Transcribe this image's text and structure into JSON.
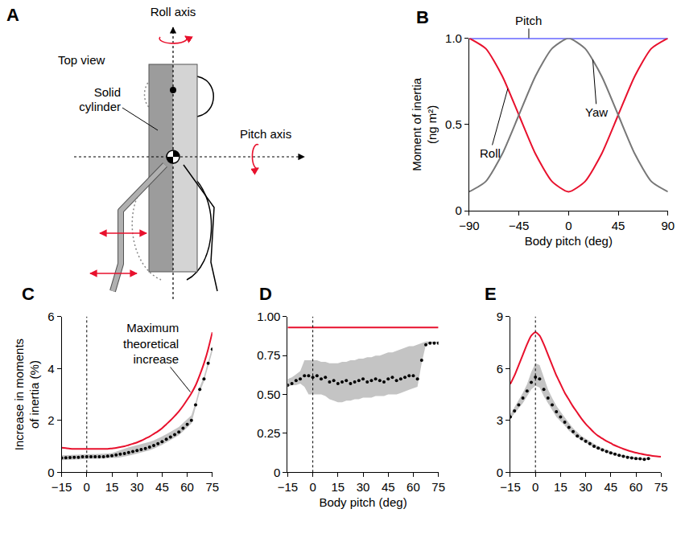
{
  "diagram": {
    "panel": "A",
    "view": "Top view",
    "roll_axis": "Roll axis",
    "pitch_axis": "Pitch axis",
    "cylinder": "Solid cylinder"
  },
  "chart_data": [
    {
      "panel": "B",
      "type": "line",
      "xlabel": "Body pitch (deg)",
      "ylabel": "Moment of inertia (ng m²)",
      "x": [
        -90,
        -75,
        -60,
        -45,
        -30,
        -15,
        0,
        15,
        30,
        45,
        60,
        75,
        90
      ],
      "xlim": [
        -90,
        90
      ],
      "xticks": [
        {
          "value": -90,
          "label": "−90"
        },
        {
          "value": -45,
          "label": "−45"
        },
        0,
        45,
        90
      ],
      "ylim": [
        0,
        1
      ],
      "yticks": [
        0,
        0.5,
        {
          "value": 1,
          "label": "1.0"
        }
      ],
      "series": [
        {
          "name": "Pitch",
          "color": "#1a1aff",
          "line_style": "solid",
          "values": [
            1,
            1,
            1,
            1,
            1,
            1,
            1,
            1,
            1,
            1,
            1,
            1,
            1
          ]
        },
        {
          "name": "Roll",
          "color": "#e8112d",
          "line_style": "solid",
          "values": [
            1.0,
            0.94,
            0.78,
            0.555,
            0.33,
            0.17,
            0.11,
            0.17,
            0.33,
            0.555,
            0.78,
            0.94,
            1.0
          ]
        },
        {
          "name": "Yaw",
          "color": "#777777",
          "line_style": "solid",
          "values": [
            0.11,
            0.17,
            0.33,
            0.555,
            0.78,
            0.94,
            1.0,
            0.94,
            0.78,
            0.555,
            0.33,
            0.17,
            0.11
          ]
        }
      ]
    },
    {
      "panel": "C",
      "type": "line",
      "ylabel": "Increase in moments of inertia (%)",
      "annotations": [
        {
          "text": "Maximum theoretical increase"
        }
      ],
      "vline": 0,
      "x": [
        -15,
        -12.5,
        -10,
        -7.5,
        -5,
        -2.5,
        0,
        2.5,
        5,
        7.5,
        10,
        12.5,
        15,
        17.5,
        20,
        22.5,
        25,
        27.5,
        30,
        32.5,
        35,
        37.5,
        40,
        42.5,
        45,
        47.5,
        50,
        52.5,
        55,
        57.5,
        60,
        62.5,
        65,
        67.5,
        70,
        72.5,
        75
      ],
      "xlim": [
        -15,
        75
      ],
      "xticks": [
        {
          "value": -15,
          "label": "−15"
        },
        0,
        15,
        30,
        45,
        60,
        75
      ],
      "ylim": [
        0,
        6
      ],
      "yticks": [
        0,
        2,
        4,
        6
      ],
      "series": [
        {
          "type": "scatter",
          "color": "#000000",
          "marker": "circle",
          "values": [
            0.55,
            0.56,
            0.57,
            0.58,
            0.58,
            0.6,
            0.6,
            0.6,
            0.6,
            0.6,
            0.6,
            0.62,
            0.64,
            0.67,
            0.7,
            0.72,
            0.76,
            0.8,
            0.84,
            0.88,
            0.92,
            0.97,
            1.03,
            1.1,
            1.18,
            1.27,
            1.36,
            1.45,
            1.55,
            1.7,
            1.85,
            2.0,
            2.6,
            3.2,
            3.6,
            4.2,
            4.75
          ],
          "lower": [
            0.47,
            0.48,
            0.49,
            0.5,
            0.5,
            0.52,
            0.52,
            0.52,
            0.52,
            0.52,
            0.52,
            0.54,
            0.56,
            0.55,
            0.58,
            0.6,
            0.64,
            0.68,
            0.72,
            0.76,
            0.8,
            0.85,
            0.91,
            0.98,
            1.06,
            1.15,
            1.24,
            1.33,
            1.43,
            1.58,
            1.73,
            1.88,
            2.5,
            3.1,
            3.5,
            4.1,
            4.65
          ],
          "upper": [
            0.65,
            0.66,
            0.67,
            0.68,
            0.68,
            0.7,
            0.7,
            0.7,
            0.7,
            0.7,
            0.7,
            0.72,
            0.74,
            0.8,
            0.86,
            0.92,
            0.96,
            1.0,
            1.04,
            1.08,
            1.12,
            1.17,
            1.23,
            1.3,
            1.38,
            1.47,
            1.56,
            1.65,
            1.75,
            1.9,
            2.05,
            2.2,
            2.7,
            3.3,
            3.7,
            4.3,
            4.85
          ]
        },
        {
          "type": "line",
          "color": "#e8112d",
          "line_style": "solid",
          "values": [
            0.95,
            0.93,
            0.91,
            0.9,
            0.9,
            0.9,
            0.9,
            0.9,
            0.9,
            0.9,
            0.9,
            0.9,
            0.92,
            0.94,
            0.97,
            1.0,
            1.05,
            1.1,
            1.15,
            1.22,
            1.3,
            1.38,
            1.48,
            1.58,
            1.7,
            1.85,
            2.0,
            2.17,
            2.35,
            2.56,
            2.8,
            3.05,
            3.35,
            3.75,
            4.2,
            4.75,
            5.4
          ]
        }
      ]
    },
    {
      "panel": "D",
      "type": "line",
      "xlabel": "Body pitch (deg)",
      "vline": 0,
      "x": [
        -15,
        -12.5,
        -10,
        -7.5,
        -5,
        -2.5,
        0,
        2.5,
        5,
        7.5,
        10,
        12.5,
        15,
        17.5,
        20,
        22.5,
        25,
        27.5,
        30,
        32.5,
        35,
        37.5,
        40,
        42.5,
        45,
        47.5,
        50,
        52.5,
        55,
        57.5,
        60,
        62.5,
        65,
        67.5,
        70,
        72.5,
        75
      ],
      "xlim": [
        -15,
        75
      ],
      "xticks": [
        {
          "value": -15,
          "label": "−15"
        },
        0,
        15,
        30,
        45,
        60,
        75
      ],
      "ylim": [
        0,
        1
      ],
      "yticks": [
        0,
        0.25,
        {
          "value": 0.5,
          "label": "0.50"
        },
        0.75,
        {
          "value": 1,
          "label": "1.00"
        }
      ],
      "series": [
        {
          "type": "scatter",
          "color": "#000000",
          "marker": "circle",
          "values": [
            0.56,
            0.57,
            0.59,
            0.6,
            0.62,
            0.62,
            0.61,
            0.62,
            0.6,
            0.61,
            0.58,
            0.59,
            0.57,
            0.58,
            0.59,
            0.57,
            0.58,
            0.59,
            0.6,
            0.58,
            0.59,
            0.6,
            0.59,
            0.58,
            0.6,
            0.61,
            0.59,
            0.6,
            0.61,
            0.62,
            0.62,
            0.6,
            0.72,
            0.82,
            0.83,
            0.83,
            0.83
          ],
          "lower": [
            0.55,
            0.56,
            0.56,
            0.57,
            0.55,
            0.5,
            0.5,
            0.5,
            0.5,
            0.49,
            0.47,
            0.46,
            0.45,
            0.45,
            0.46,
            0.46,
            0.47,
            0.47,
            0.48,
            0.48,
            0.48,
            0.49,
            0.49,
            0.49,
            0.5,
            0.5,
            0.5,
            0.51,
            0.52,
            0.53,
            0.54,
            0.55,
            0.7,
            0.82,
            0.83,
            0.83,
            0.83
          ],
          "upper": [
            0.6,
            0.61,
            0.63,
            0.65,
            0.72,
            0.72,
            0.72,
            0.72,
            0.71,
            0.71,
            0.7,
            0.7,
            0.7,
            0.71,
            0.71,
            0.72,
            0.72,
            0.73,
            0.73,
            0.74,
            0.74,
            0.75,
            0.75,
            0.76,
            0.77,
            0.77,
            0.78,
            0.79,
            0.8,
            0.81,
            0.81,
            0.82,
            0.83,
            0.84,
            0.84,
            0.84,
            0.84
          ]
        },
        {
          "type": "line",
          "color": "#e8112d",
          "line_style": "solid",
          "values": [
            0.93,
            0.93,
            0.93,
            0.93,
            0.93,
            0.93,
            0.93,
            0.93,
            0.93,
            0.93,
            0.93,
            0.93,
            0.93,
            0.93,
            0.93,
            0.93,
            0.93,
            0.93,
            0.93,
            0.93,
            0.93,
            0.93,
            0.93,
            0.93,
            0.93,
            0.93,
            0.93,
            0.93,
            0.93,
            0.93,
            0.93,
            0.93,
            0.93,
            0.93,
            0.93,
            0.93,
            0.93
          ]
        }
      ]
    },
    {
      "panel": "E",
      "type": "line",
      "vline": 0,
      "x": [
        -15,
        -12.5,
        -10,
        -7.5,
        -5,
        -2.5,
        0,
        2.5,
        5,
        7.5,
        10,
        12.5,
        15,
        17.5,
        20,
        22.5,
        25,
        27.5,
        30,
        32.5,
        35,
        37.5,
        40,
        42.5,
        45,
        47.5,
        50,
        52.5,
        55,
        57.5,
        60,
        62.5,
        65,
        67.5,
        70,
        72.5,
        75
      ],
      "xlim": [
        -15,
        75
      ],
      "xticks": [
        {
          "value": -15,
          "label": "−15"
        },
        0,
        15,
        30,
        45,
        60,
        75
      ],
      "ylim": [
        0,
        9
      ],
      "yticks": [
        0,
        3,
        6,
        9
      ],
      "series": [
        {
          "type": "scatter",
          "color": "#000000",
          "marker": "circle",
          "values": [
            3.2,
            3.55,
            3.9,
            4.3,
            4.7,
            5.2,
            5.5,
            5.4,
            4.8,
            4.3,
            3.9,
            3.5,
            3.2,
            2.9,
            2.6,
            2.35,
            2.1,
            1.95,
            1.8,
            1.65,
            1.5,
            1.4,
            1.3,
            1.2,
            1.12,
            1.05,
            0.98,
            0.92,
            0.87,
            0.83,
            0.8,
            0.78,
            0.75,
            0.8,
            null,
            null,
            null
          ],
          "lower": [
            3.1,
            3.4,
            3.7,
            4.0,
            4.4,
            4.8,
            5.0,
            4.9,
            4.4,
            4.0,
            3.6,
            3.2,
            2.95,
            2.7,
            2.4,
            2.2,
            2.0,
            1.85,
            1.7,
            1.55,
            1.42,
            1.32,
            1.22,
            1.13,
            1.05,
            0.98,
            0.92,
            0.86,
            0.81,
            0.77,
            0.74,
            0.72,
            0.7,
            0.75,
            null,
            null,
            null
          ],
          "upper": [
            3.35,
            3.75,
            4.15,
            4.6,
            5.1,
            5.8,
            6.3,
            6.2,
            5.5,
            4.8,
            4.3,
            3.85,
            3.5,
            3.15,
            2.85,
            2.55,
            2.3,
            2.1,
            1.95,
            1.8,
            1.62,
            1.5,
            1.4,
            1.3,
            1.2,
            1.12,
            1.05,
            0.99,
            0.94,
            0.9,
            0.87,
            0.85,
            0.82,
            0.85,
            null,
            null,
            null
          ]
        },
        {
          "type": "line",
          "color": "#e8112d",
          "line_style": "solid",
          "values": [
            5.1,
            5.6,
            6.2,
            6.8,
            7.4,
            7.9,
            8.1,
            7.9,
            7.4,
            6.8,
            6.2,
            5.6,
            5.1,
            4.6,
            4.2,
            3.8,
            3.45,
            3.1,
            2.8,
            2.55,
            2.3,
            2.1,
            1.95,
            1.8,
            1.68,
            1.55,
            1.45,
            1.35,
            1.27,
            1.2,
            1.13,
            1.08,
            1.03,
            0.99,
            0.95,
            0.92,
            0.9
          ]
        }
      ]
    }
  ]
}
